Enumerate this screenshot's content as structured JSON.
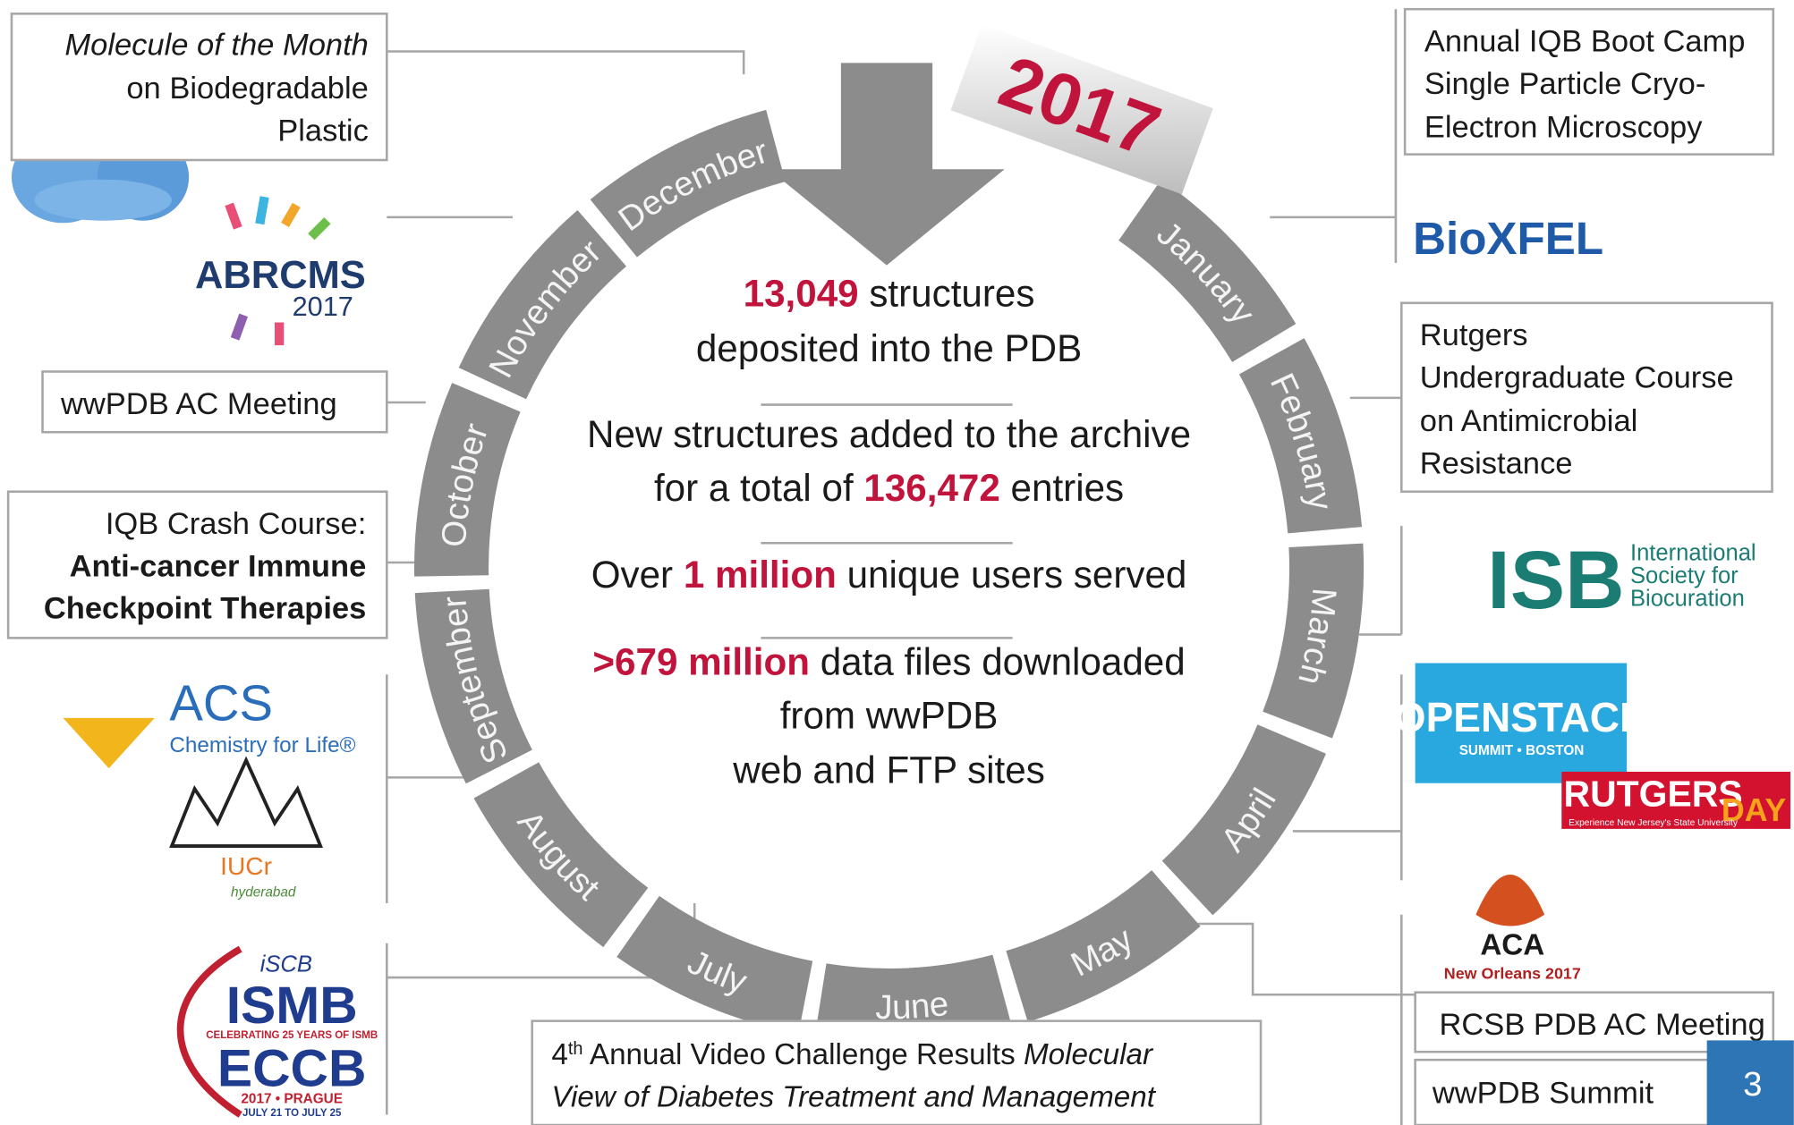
{
  "year": "2017",
  "months": [
    "January",
    "February",
    "March",
    "April",
    "May",
    "June",
    "July",
    "August",
    "September",
    "October",
    "November",
    "December"
  ],
  "ring_color": "#8c8c8c",
  "stats": [
    {
      "lines": [
        [
          {
            "text": "13,049",
            "color": "#c0143c",
            "weight": "bold"
          },
          {
            "text": " structures"
          }
        ],
        [
          {
            "text": "deposited into the PDB"
          }
        ]
      ]
    },
    {
      "lines": [
        [
          {
            "text": "New structures added to the archive"
          }
        ],
        [
          {
            "text": "for a total of "
          },
          {
            "text": "136,472",
            "color": "#c0143c",
            "weight": "bold"
          },
          {
            "text": " entries"
          }
        ]
      ]
    },
    {
      "lines": [
        [
          {
            "text": "Over "
          },
          {
            "text": "1 million",
            "color": "#c0143c",
            "weight": "bold"
          },
          {
            "text": " unique users served"
          }
        ]
      ]
    },
    {
      "lines": [
        [
          {
            "text": ">679 million",
            "color": "#c0143c",
            "weight": "bold"
          },
          {
            "text": " data files downloaded"
          }
        ],
        [
          {
            "text": "from wwPDB"
          }
        ],
        [
          {
            "text": "web and FTP sites"
          }
        ]
      ]
    }
  ],
  "events": [
    {
      "lines": [
        [
          {
            "text": "Molecule of the Month",
            "style": "italic"
          }
        ],
        [
          {
            "text": "on Biodegradable"
          }
        ],
        [
          {
            "text": "Plastic"
          }
        ]
      ]
    },
    {
      "lines": [
        [
          {
            "text": "wwPDB AC Meeting"
          }
        ]
      ]
    },
    {
      "lines": [
        [
          {
            "text": "IQB Crash Course:"
          }
        ],
        [
          {
            "text": "Anti-cancer Immune",
            "weight": "bold"
          }
        ],
        [
          {
            "text": "Checkpoint Therapies",
            "weight": "bold"
          }
        ]
      ]
    },
    {
      "lines": [
        [
          {
            "text": "Annual IQB Boot Camp"
          }
        ],
        [
          {
            "text": "Single Particle Cryo-"
          }
        ],
        [
          {
            "text": "Electron Microscopy"
          }
        ]
      ]
    },
    {
      "lines": [
        [
          {
            "text": "Rutgers"
          }
        ],
        [
          {
            "text": "Undergraduate Course"
          }
        ],
        [
          {
            "text": "on Antimicrobial"
          }
        ],
        [
          {
            "text": "Resistance"
          }
        ]
      ]
    },
    {
      "lines": [
        [
          {
            "text": "RCSB PDB AC Meeting"
          }
        ]
      ]
    },
    {
      "lines": [
        [
          {
            "text": "wwPDB Summit"
          }
        ]
      ]
    },
    {
      "lines": [
        [
          {
            "text": "4"
          },
          {
            "text": "th",
            "style": "sup"
          },
          {
            "text": " Annual Video Challenge Results "
          },
          {
            "text": "Molecular",
            "style": "italic"
          }
        ],
        [
          {
            "text": "View of Diabetes Treatment and Management",
            "style": "italic"
          }
        ]
      ]
    }
  ],
  "logos": [
    {
      "texts": [
        "ABRCMS",
        "2017"
      ]
    },
    {
      "texts": [
        "BioXFEL"
      ]
    },
    {
      "texts": [
        "ISB",
        "International",
        "Society for",
        "Biocuration"
      ]
    },
    {
      "texts": [
        "OPENSTACK",
        "SUMMIT • BOSTON"
      ]
    },
    {
      "texts": [
        "RUTGERS",
        "DAY",
        "Experience New Jersey's State University"
      ]
    },
    {
      "texts": [
        "ACA",
        "New Orleans 2017"
      ]
    },
    {
      "texts": [
        "ACS",
        "Chemistry for Life®"
      ]
    },
    {
      "texts": [
        "IUCr",
        "hyderabad"
      ]
    },
    {
      "texts": [
        "iSCB",
        "ISMB",
        "CELEBRATING 25 YEARS OF ISMB",
        "ECCB",
        "2017 • PRAGUE",
        "JULY 21 TO JULY 25"
      ]
    }
  ],
  "page_number": "3"
}
